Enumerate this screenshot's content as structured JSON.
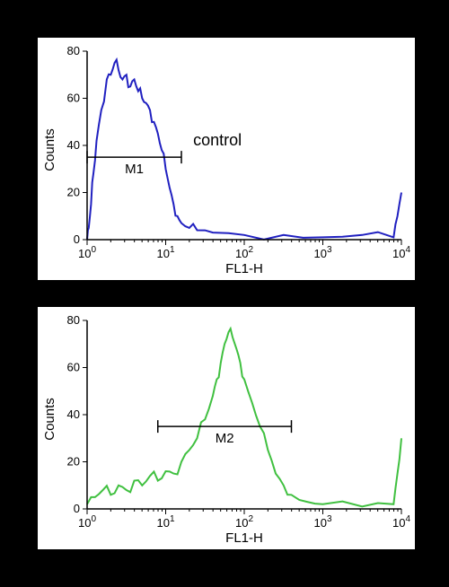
{
  "background_color": "#000000",
  "panel_background": "#ffffff",
  "top_chart": {
    "type": "histogram",
    "line_color": "#2020c0",
    "line_width": 2,
    "xlabel": "FL1-H",
    "ylabel": "Counts",
    "label_fontsize": 15,
    "tick_fontsize": 13,
    "xscale": "log",
    "xlim": [
      1,
      10000
    ],
    "xticks": [
      "10",
      "10",
      "10",
      "10",
      "10"
    ],
    "xtick_exponents": [
      "0",
      "1",
      "2",
      "3",
      "4"
    ],
    "ylim": [
      0,
      80
    ],
    "yticks": [
      0,
      20,
      40,
      60,
      80
    ],
    "annotation_label": "control",
    "marker_label": "M1",
    "marker_range": [
      0,
      1.2
    ],
    "series": [
      {
        "x": 0.0,
        "y": 0
      },
      {
        "x": 0.02,
        "y": 5
      },
      {
        "x": 0.05,
        "y": 15
      },
      {
        "x": 0.08,
        "y": 28
      },
      {
        "x": 0.12,
        "y": 42
      },
      {
        "x": 0.18,
        "y": 55
      },
      {
        "x": 0.25,
        "y": 68
      },
      {
        "x": 0.3,
        "y": 70
      },
      {
        "x": 0.35,
        "y": 75
      },
      {
        "x": 0.4,
        "y": 72
      },
      {
        "x": 0.45,
        "y": 68
      },
      {
        "x": 0.5,
        "y": 70
      },
      {
        "x": 0.55,
        "y": 65
      },
      {
        "x": 0.6,
        "y": 68
      },
      {
        "x": 0.65,
        "y": 63
      },
      {
        "x": 0.7,
        "y": 60
      },
      {
        "x": 0.75,
        "y": 58
      },
      {
        "x": 0.8,
        "y": 55
      },
      {
        "x": 0.85,
        "y": 50
      },
      {
        "x": 0.9,
        "y": 45
      },
      {
        "x": 0.95,
        "y": 38
      },
      {
        "x": 1.0,
        "y": 30
      },
      {
        "x": 1.05,
        "y": 22
      },
      {
        "x": 1.1,
        "y": 15
      },
      {
        "x": 1.15,
        "y": 10
      },
      {
        "x": 1.2,
        "y": 7
      },
      {
        "x": 1.3,
        "y": 5
      },
      {
        "x": 1.4,
        "y": 4
      },
      {
        "x": 1.6,
        "y": 3
      },
      {
        "x": 2.0,
        "y": 2
      },
      {
        "x": 2.5,
        "y": 2
      },
      {
        "x": 3.0,
        "y": 1
      },
      {
        "x": 3.5,
        "y": 2
      },
      {
        "x": 3.9,
        "y": 1
      },
      {
        "x": 3.95,
        "y": 10
      },
      {
        "x": 4.0,
        "y": 20
      }
    ]
  },
  "bottom_chart": {
    "type": "histogram",
    "line_color": "#40c040",
    "line_width": 2,
    "xlabel": "FL1-H",
    "ylabel": "Counts",
    "label_fontsize": 15,
    "tick_fontsize": 13,
    "xscale": "log",
    "xlim": [
      1,
      10000
    ],
    "xticks": [
      "10",
      "10",
      "10",
      "10",
      "10"
    ],
    "xtick_exponents": [
      "0",
      "1",
      "2",
      "3",
      "4"
    ],
    "ylim": [
      0,
      80
    ],
    "yticks": [
      0,
      20,
      40,
      60,
      80
    ],
    "marker_label": "M2",
    "marker_range": [
      0.9,
      2.6
    ],
    "series": [
      {
        "x": 0.0,
        "y": 2
      },
      {
        "x": 0.1,
        "y": 5
      },
      {
        "x": 0.2,
        "y": 8
      },
      {
        "x": 0.3,
        "y": 6
      },
      {
        "x": 0.4,
        "y": 10
      },
      {
        "x": 0.5,
        "y": 8
      },
      {
        "x": 0.6,
        "y": 12
      },
      {
        "x": 0.7,
        "y": 10
      },
      {
        "x": 0.8,
        "y": 14
      },
      {
        "x": 0.9,
        "y": 12
      },
      {
        "x": 1.0,
        "y": 16
      },
      {
        "x": 1.1,
        "y": 15
      },
      {
        "x": 1.2,
        "y": 20
      },
      {
        "x": 1.3,
        "y": 25
      },
      {
        "x": 1.4,
        "y": 30
      },
      {
        "x": 1.5,
        "y": 38
      },
      {
        "x": 1.6,
        "y": 48
      },
      {
        "x": 1.65,
        "y": 55
      },
      {
        "x": 1.7,
        "y": 62
      },
      {
        "x": 1.75,
        "y": 70
      },
      {
        "x": 1.8,
        "y": 75
      },
      {
        "x": 1.85,
        "y": 73
      },
      {
        "x": 1.9,
        "y": 68
      },
      {
        "x": 1.95,
        "y": 62
      },
      {
        "x": 2.0,
        "y": 55
      },
      {
        "x": 2.1,
        "y": 45
      },
      {
        "x": 2.2,
        "y": 35
      },
      {
        "x": 2.3,
        "y": 25
      },
      {
        "x": 2.4,
        "y": 15
      },
      {
        "x": 2.5,
        "y": 10
      },
      {
        "x": 2.6,
        "y": 6
      },
      {
        "x": 2.8,
        "y": 3
      },
      {
        "x": 3.0,
        "y": 2
      },
      {
        "x": 3.5,
        "y": 1
      },
      {
        "x": 3.9,
        "y": 2
      },
      {
        "x": 3.95,
        "y": 15
      },
      {
        "x": 4.0,
        "y": 30
      }
    ]
  }
}
